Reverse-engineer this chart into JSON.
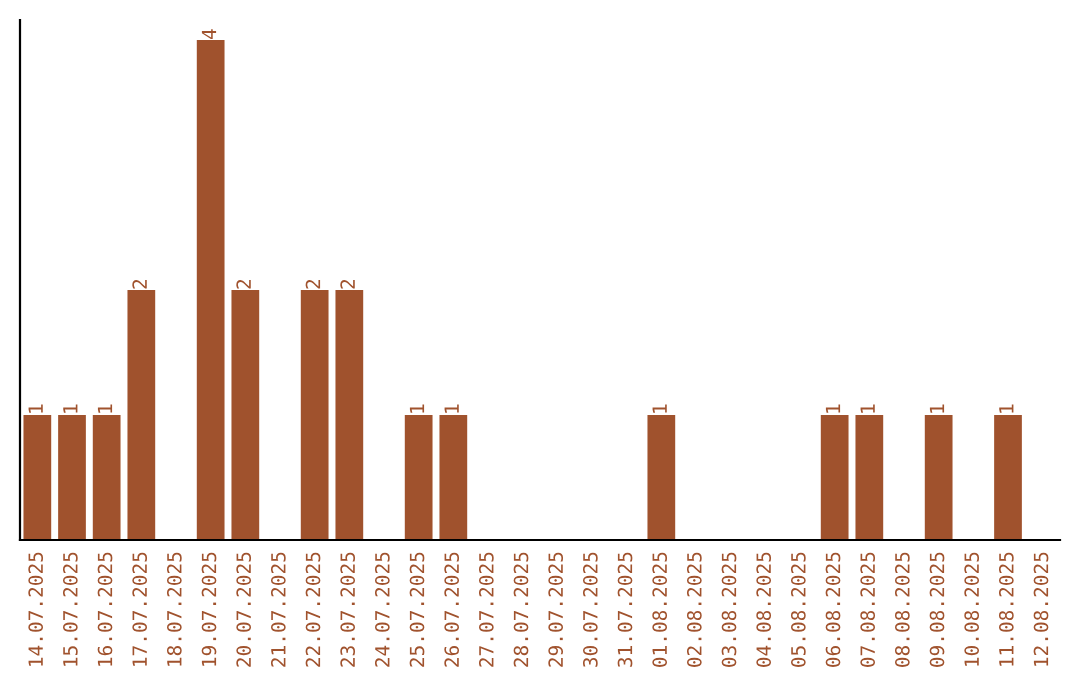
{
  "chart_data": {
    "type": "bar",
    "categories": [
      "14.07.2025",
      "15.07.2025",
      "16.07.2025",
      "17.07.2025",
      "18.07.2025",
      "19.07.2025",
      "20.07.2025",
      "21.07.2025",
      "22.07.2025",
      "23.07.2025",
      "24.07.2025",
      "25.07.2025",
      "26.07.2025",
      "27.07.2025",
      "28.07.2025",
      "29.07.2025",
      "30.07.2025",
      "31.07.2025",
      "01.08.2025",
      "02.08.2025",
      "03.08.2025",
      "04.08.2025",
      "05.08.2025",
      "06.08.2025",
      "07.08.2025",
      "08.08.2025",
      "09.08.2025",
      "10.08.2025",
      "11.08.2025",
      "12.08.2025"
    ],
    "values": [
      1,
      1,
      1,
      2,
      0,
      4,
      2,
      0,
      2,
      2,
      0,
      1,
      1,
      0,
      0,
      0,
      0,
      0,
      1,
      0,
      0,
      0,
      0,
      1,
      1,
      0,
      1,
      0,
      1,
      0
    ],
    "value_labels": [
      "1",
      "1",
      "1",
      "2",
      null,
      "4",
      "2",
      null,
      "2",
      "2",
      null,
      "1",
      "1",
      null,
      null,
      null,
      null,
      null,
      "1",
      null,
      null,
      null,
      null,
      "1",
      "1",
      null,
      "1",
      null,
      "1",
      null
    ],
    "color": "#a0522d",
    "grid": false,
    "legend": false,
    "tick_labels": "x"
  }
}
